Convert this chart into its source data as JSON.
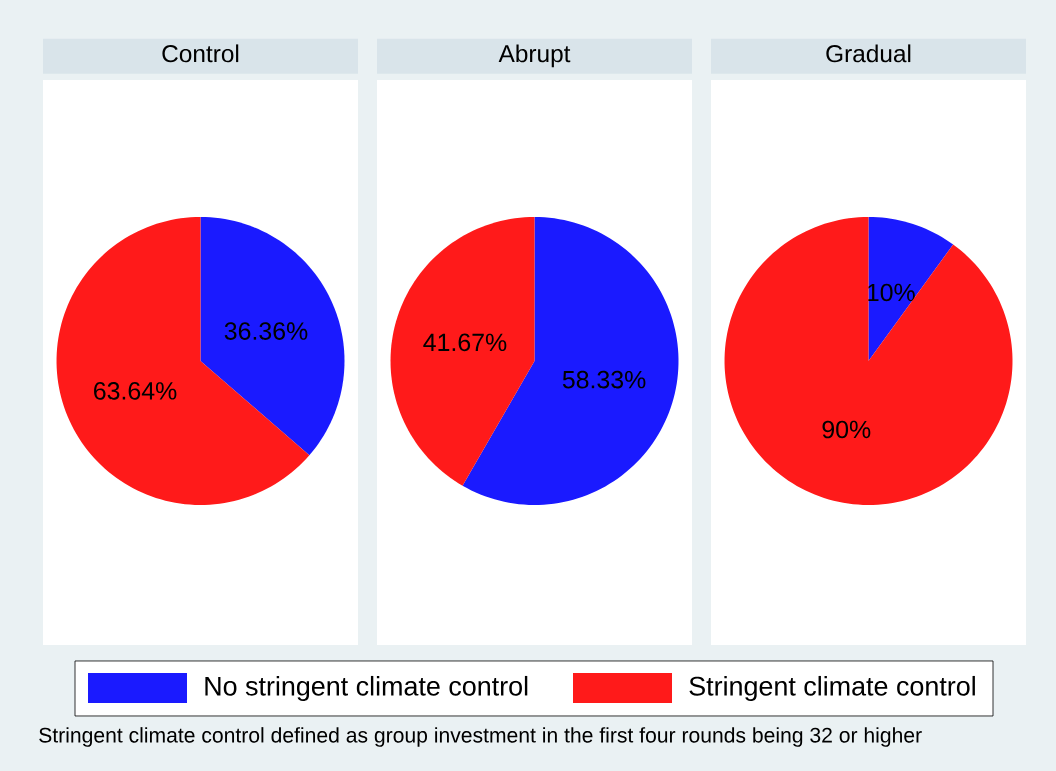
{
  "chart_data": [
    {
      "type": "pie",
      "title": "Control",
      "categories": [
        "No stringent climate control",
        "Stringent climate control"
      ],
      "values": [
        36.36,
        63.64
      ],
      "value_labels": [
        "36.36%",
        "63.64%"
      ],
      "colors": [
        "#1a1aff",
        "#ff1a1a"
      ],
      "legend": "bottom",
      "annotations": [
        "Stringent climate control defined as group investment in the first four rounds being 32 or higher"
      ]
    },
    {
      "type": "pie",
      "title": "Abrupt",
      "categories": [
        null,
        null
      ],
      "values": [
        58.33,
        41.67
      ],
      "value_labels": [
        "58.33%",
        "41.67%"
      ],
      "colors": [
        "#1a1aff",
        "#ff1a1a"
      ]
    },
    {
      "type": "pie",
      "title": "Gradual",
      "categories": [
        null,
        null
      ],
      "values": [
        10,
        90
      ],
      "value_labels": [
        "10%",
        "90%"
      ],
      "colors": [
        "#1a1aff",
        "#ff1a1a"
      ]
    }
  ]
}
